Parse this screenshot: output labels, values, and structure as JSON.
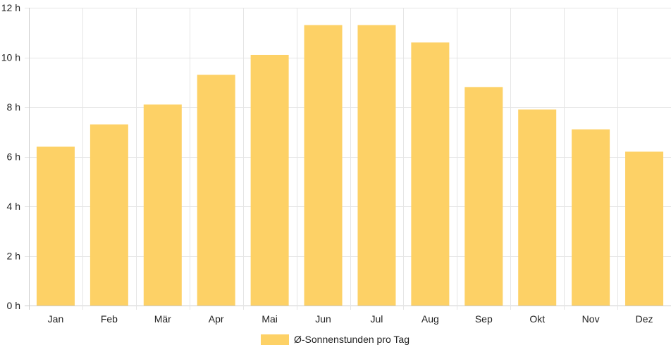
{
  "chart_data": {
    "type": "bar",
    "categories": [
      "Jan",
      "Feb",
      "Mär",
      "Apr",
      "Mai",
      "Jun",
      "Jul",
      "Aug",
      "Sep",
      "Okt",
      "Nov",
      "Dez"
    ],
    "series": [
      {
        "name": "Ø-Sonnenstunden pro Tag",
        "values": [
          6.4,
          7.3,
          8.1,
          9.3,
          10.1,
          11.3,
          11.3,
          10.6,
          8.8,
          7.9,
          7.1,
          6.2
        ],
        "color": "#fdd166"
      }
    ],
    "y_ticks": [
      "0 h",
      "2 h",
      "4 h",
      "6 h",
      "8 h",
      "10 h",
      "12 h"
    ],
    "ylim": [
      0,
      12
    ],
    "grid": true,
    "legend_position": "bottom"
  },
  "colors": {
    "grid": "#e5e5e5",
    "axis": "#cccccc"
  }
}
